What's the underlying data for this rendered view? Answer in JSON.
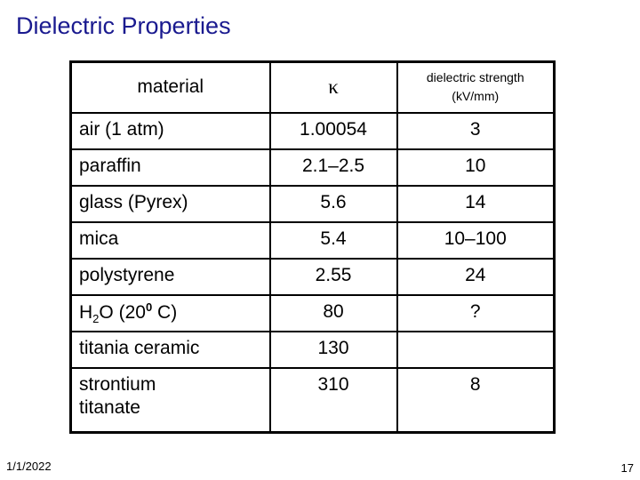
{
  "slide": {
    "title": "Dielectric Properties",
    "footer_date": "1/1/2022",
    "page_number": "17",
    "title_color": "#1a1a8f"
  },
  "table": {
    "headers": [
      {
        "label": "material"
      },
      {
        "label": "κ"
      },
      {
        "label": "dielectric strength",
        "unit": "(kV/mm)"
      }
    ],
    "rows": [
      {
        "material": "air (1 atm)",
        "kappa": "1.00054",
        "strength": "3"
      },
      {
        "material": "paraffin",
        "kappa": "2.1–2.5",
        "strength": "10"
      },
      {
        "material": "glass (Pyrex)",
        "kappa": "5.6",
        "strength": "14"
      },
      {
        "material": "mica",
        "kappa": "5.4",
        "strength": "10–100"
      },
      {
        "material": "polystyrene",
        "kappa": "2.55",
        "strength": "24"
      },
      {
        "material": [
          {
            "t": "H"
          },
          {
            "t": "2",
            "s": "sub"
          },
          {
            "t": "O (20"
          },
          {
            "t": "0",
            "s": "sup"
          },
          {
            "t": " C)"
          }
        ],
        "kappa": "80",
        "strength": "?"
      },
      {
        "material": "titania ceramic",
        "kappa": "130",
        "strength": ""
      },
      {
        "material": "strontium\ntitanate",
        "kappa": "310",
        "strength": "8"
      }
    ]
  }
}
